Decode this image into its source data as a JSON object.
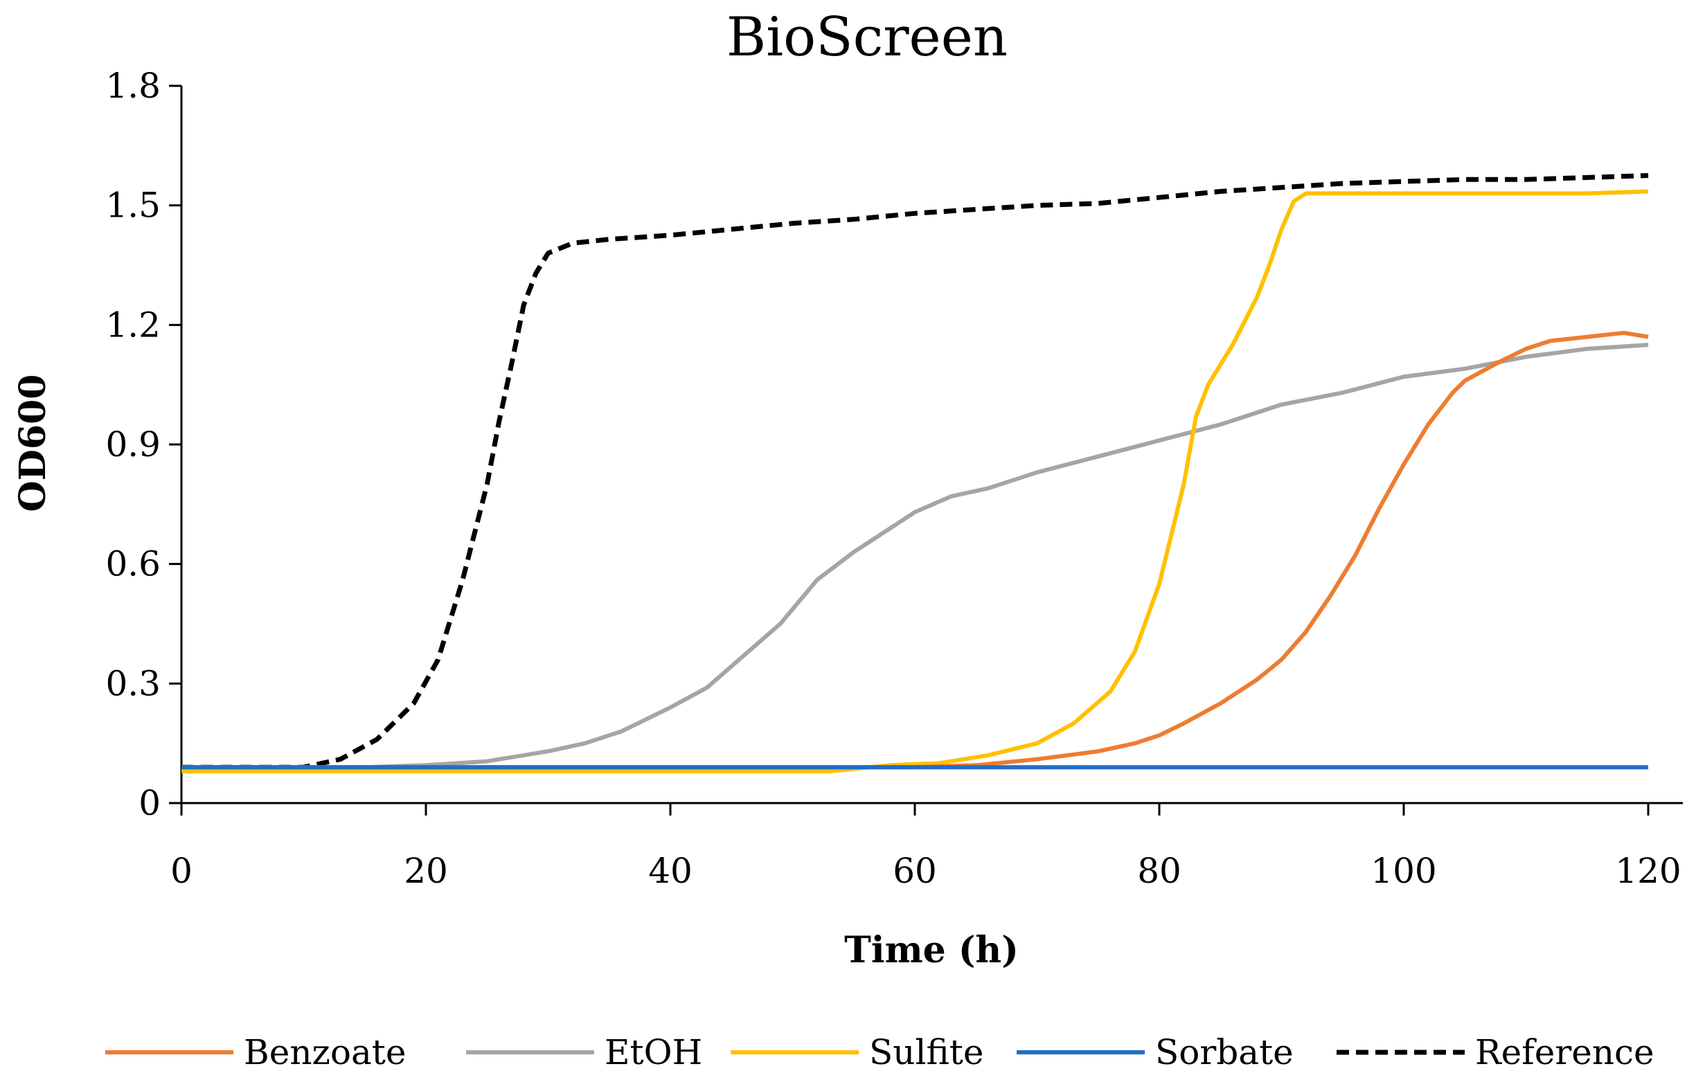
{
  "chart_data": {
    "type": "line",
    "title": "BioScreen",
    "xlabel": "Time (h)",
    "ylabel": "OD600",
    "xlim": [
      0,
      120
    ],
    "ylim": [
      0,
      1.8
    ],
    "xticks": [
      "0",
      "20",
      "40",
      "60",
      "80",
      "100",
      "120"
    ],
    "yticks": [
      "0",
      "0.3",
      "0.6",
      "0.9",
      "1.2",
      "1.5",
      "1.8"
    ],
    "grid": false,
    "legend_position": "bottom",
    "series": [
      {
        "name": "Benzoate",
        "color": "#ED7D31",
        "dash": "solid",
        "x": [
          0,
          20,
          40,
          60,
          65,
          70,
          75,
          78,
          80,
          82,
          85,
          88,
          90,
          92,
          94,
          96,
          98,
          100,
          102,
          104,
          105,
          108,
          110,
          112,
          115,
          118,
          120
        ],
        "y": [
          0.09,
          0.09,
          0.09,
          0.09,
          0.095,
          0.11,
          0.13,
          0.15,
          0.17,
          0.2,
          0.25,
          0.31,
          0.36,
          0.43,
          0.52,
          0.62,
          0.74,
          0.85,
          0.95,
          1.03,
          1.06,
          1.11,
          1.14,
          1.16,
          1.17,
          1.18,
          1.17
        ]
      },
      {
        "name": "EtOH",
        "color": "#A5A5A5",
        "dash": "solid",
        "x": [
          0,
          15,
          20,
          25,
          30,
          33,
          36,
          40,
          43,
          46,
          49,
          52,
          55,
          58,
          60,
          63,
          66,
          70,
          75,
          80,
          85,
          90,
          95,
          100,
          105,
          110,
          115,
          120
        ],
        "y": [
          0.09,
          0.09,
          0.095,
          0.105,
          0.13,
          0.15,
          0.18,
          0.24,
          0.29,
          0.37,
          0.45,
          0.56,
          0.63,
          0.69,
          0.73,
          0.77,
          0.79,
          0.83,
          0.87,
          0.91,
          0.95,
          1.0,
          1.03,
          1.07,
          1.09,
          1.12,
          1.14,
          1.15
        ]
      },
      {
        "name": "Sulfite",
        "color": "#FFC000",
        "dash": "solid",
        "x": [
          0,
          20,
          40,
          53,
          58,
          62,
          66,
          70,
          73,
          76,
          78,
          80,
          82,
          83,
          84,
          86,
          88,
          89,
          90,
          91,
          92,
          95,
          100,
          105,
          110,
          115,
          120
        ],
        "y": [
          0.08,
          0.08,
          0.08,
          0.08,
          0.095,
          0.1,
          0.12,
          0.15,
          0.2,
          0.28,
          0.38,
          0.55,
          0.8,
          0.97,
          1.05,
          1.15,
          1.27,
          1.35,
          1.44,
          1.51,
          1.53,
          1.53,
          1.53,
          1.53,
          1.53,
          1.53,
          1.535
        ]
      },
      {
        "name": "Sorbate",
        "color": "#1F6FC5",
        "dash": "solid",
        "x": [
          0,
          20,
          40,
          60,
          80,
          100,
          120
        ],
        "y": [
          0.09,
          0.09,
          0.09,
          0.09,
          0.09,
          0.09,
          0.09
        ]
      },
      {
        "name": "Reference",
        "color": "#000000",
        "dash": "dashed",
        "x": [
          0,
          5,
          10,
          13,
          16,
          19,
          21,
          23,
          25,
          26,
          27,
          28,
          29,
          30,
          32,
          35,
          40,
          45,
          50,
          55,
          60,
          65,
          70,
          75,
          80,
          85,
          90,
          95,
          100,
          105,
          110,
          115,
          120
        ],
        "y": [
          0.09,
          0.09,
          0.09,
          0.11,
          0.16,
          0.25,
          0.36,
          0.56,
          0.8,
          0.96,
          1.1,
          1.25,
          1.33,
          1.38,
          1.405,
          1.415,
          1.425,
          1.44,
          1.455,
          1.465,
          1.48,
          1.49,
          1.5,
          1.505,
          1.52,
          1.535,
          1.545,
          1.555,
          1.56,
          1.565,
          1.565,
          1.57,
          1.575
        ]
      }
    ]
  }
}
